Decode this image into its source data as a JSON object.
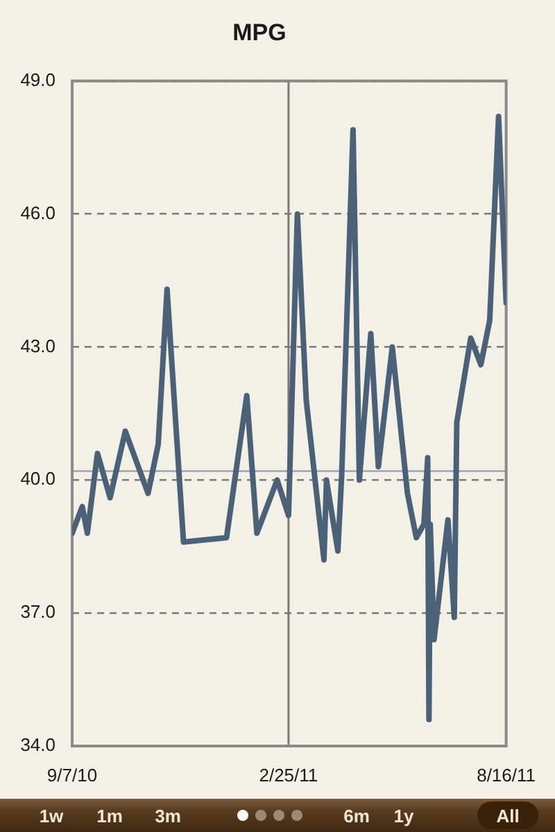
{
  "chart_data": {
    "type": "line",
    "title": "MPG",
    "x": [
      "2010-09-07",
      "2010-09-15",
      "2010-09-19",
      "2010-09-27",
      "2010-10-07",
      "2010-10-19",
      "2010-11-06",
      "2010-11-14",
      "2010-11-21",
      "2010-12-04",
      "2011-01-07",
      "2011-01-23",
      "2011-01-31",
      "2011-02-16",
      "2011-02-25",
      "2011-03-04",
      "2011-03-11",
      "2011-03-25",
      "2011-03-27",
      "2011-04-05",
      "2011-04-08",
      "2011-04-17",
      "2011-04-22",
      "2011-05-01",
      "2011-05-07",
      "2011-05-18",
      "2011-05-30",
      "2011-06-06",
      "2011-06-12",
      "2011-06-15",
      "2011-06-16",
      "2011-06-17",
      "2011-06-20",
      "2011-07-01",
      "2011-07-06",
      "2011-07-08",
      "2011-07-19",
      "2011-07-27",
      "2011-08-03",
      "2011-08-10",
      "2011-08-16"
    ],
    "values": [
      38.8,
      39.4,
      38.8,
      40.6,
      39.6,
      41.1,
      39.7,
      40.8,
      44.3,
      38.6,
      38.7,
      41.9,
      38.8,
      40.0,
      39.2,
      46.0,
      41.8,
      38.2,
      40.0,
      38.4,
      40.1,
      47.9,
      40.0,
      43.3,
      40.3,
      43.0,
      39.7,
      38.7,
      39.0,
      40.5,
      34.6,
      39.0,
      36.4,
      39.1,
      36.9,
      41.3,
      43.2,
      42.6,
      43.6,
      48.2,
      44.0
    ],
    "color": "#4b6178",
    "xlim": [
      "2010-09-07",
      "2011-08-16"
    ],
    "xticks": [
      {
        "value": "2010-09-07",
        "label": "9/7/10"
      },
      {
        "value": "2011-02-25",
        "label": "2/25/11"
      },
      {
        "value": "2011-08-16",
        "label": "8/16/11"
      }
    ],
    "ylim": [
      34,
      49
    ],
    "yticks": [
      {
        "value": 34,
        "label": "34.0"
      },
      {
        "value": 37,
        "label": "37.0"
      },
      {
        "value": 40,
        "label": "40.0"
      },
      {
        "value": 43,
        "label": "43.0"
      },
      {
        "value": 46,
        "label": "46.0"
      },
      {
        "value": 49,
        "label": "49.0"
      }
    ],
    "grid": "y",
    "ref_lines": [
      {
        "axis": "x",
        "value": "2011-02-25",
        "color": "#7a7a7a",
        "line_style": "solid"
      },
      {
        "axis": "y",
        "value": 40.2,
        "color": "#9aa5b3",
        "line_style": "solid"
      }
    ],
    "annotations": [
      "1w",
      "1m",
      "3m",
      "6m",
      "1y",
      "All"
    ]
  }
}
